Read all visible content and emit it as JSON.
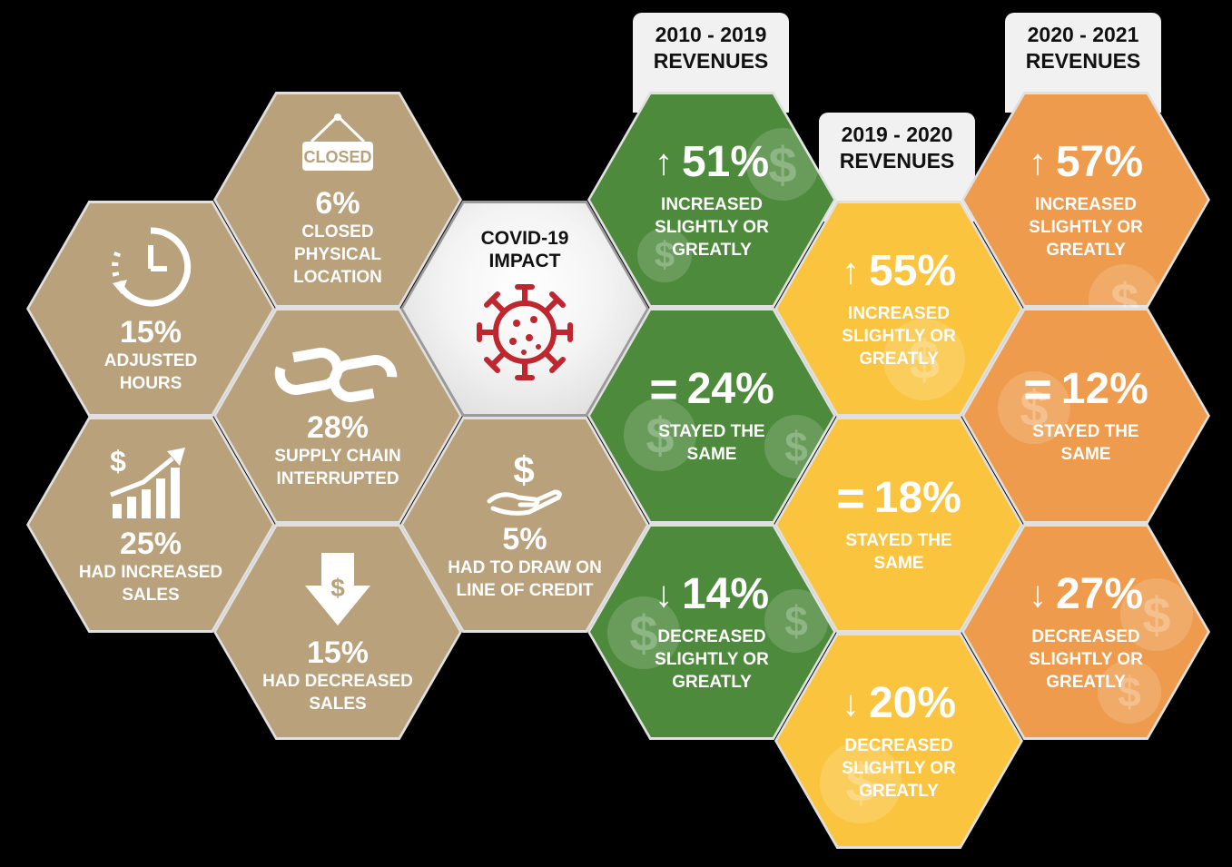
{
  "center": {
    "title": "COVID-19 IMPACT",
    "icon": "virus-icon"
  },
  "impacts": [
    {
      "icon": "closed-sign-icon",
      "sign_text": "CLOSED",
      "percent": "6%",
      "label": "CLOSED PHYSICAL LOCATION"
    },
    {
      "icon": "clock-icon",
      "percent": "15%",
      "label": "ADJUSTED HOURS"
    },
    {
      "icon": "broken-chain-icon",
      "percent": "28%",
      "label": "SUPPLY CHAIN INTERRUPTED"
    },
    {
      "icon": "sales-up-icon",
      "percent": "25%",
      "label": "HAD INCREASED SALES"
    },
    {
      "icon": "sales-down-icon",
      "percent": "15%",
      "label": "HAD DECREASED SALES"
    },
    {
      "icon": "hand-dollar-icon",
      "percent": "5%",
      "label": "HAD TO DRAW ON LINE OF CREDIT"
    }
  ],
  "periods": [
    {
      "header": "2010 - 2019 REVENUES",
      "color": "#4d8a3c",
      "items": [
        {
          "sign": "↑",
          "percent": "51%",
          "label": "INCREASED SLIGHTLY OR GREATLY"
        },
        {
          "sign": "=",
          "percent": "24%",
          "label": "STAYED THE SAME"
        },
        {
          "sign": "↓",
          "percent": "14%",
          "label": "DECREASED SLIGHTLY OR GREATLY"
        }
      ]
    },
    {
      "header": "2019 - 2020 REVENUES",
      "color": "#fbc43e",
      "items": [
        {
          "sign": "↑",
          "percent": "55%",
          "label": "INCREASED SLIGHTLY OR GREATLY"
        },
        {
          "sign": "=",
          "percent": "18%",
          "label": "STAYED THE SAME"
        },
        {
          "sign": "↓",
          "percent": "20%",
          "label": "DECREASED SLIGHTLY OR GREATLY"
        }
      ]
    },
    {
      "header": "2020 - 2021 REVENUES",
      "color": "#ee9b4d",
      "items": [
        {
          "sign": "↑",
          "percent": "57%",
          "label": "INCREASED SLIGHTLY OR GREATLY"
        },
        {
          "sign": "=",
          "percent": "12%",
          "label": "STAYED THE SAME"
        },
        {
          "sign": "↓",
          "percent": "27%",
          "label": "DECREASED SLIGHTLY OR GREATLY"
        }
      ]
    }
  ]
}
